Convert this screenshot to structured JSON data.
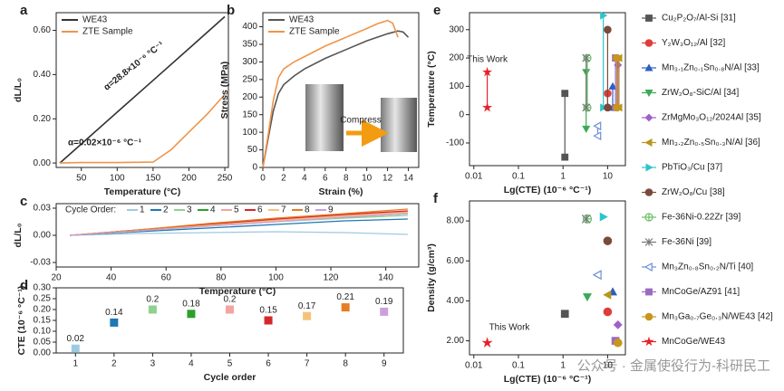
{
  "watermark": "公众号 · 金属使役行为-科研民工",
  "chart_data": [
    {
      "panel": "a",
      "type": "line",
      "xlabel": "Temperature (°C)",
      "ylabel": "dL/L₀",
      "xlim": [
        15,
        255
      ],
      "xticks": [
        50,
        100,
        150,
        200,
        250
      ],
      "ylim": [
        -0.02,
        0.68
      ],
      "yticks": [
        {
          "value": 0,
          "label": "0.00"
        },
        {
          "value": 0.2,
          "label": "0.20"
        },
        {
          "value": 0.4,
          "label": "0.40"
        },
        {
          "value": 0.6,
          "label": "0.60"
        }
      ],
      "legend": "upper left",
      "series": [
        {
          "name": "WE43",
          "color": "#333333",
          "x": [
            20,
            50,
            100,
            150,
            200,
            250
          ],
          "values": [
            0,
            0.086,
            0.23,
            0.374,
            0.518,
            0.662
          ]
        },
        {
          "name": "ZTE Sample",
          "color": "#f0944a",
          "x": [
            20,
            50,
            100,
            150,
            175,
            200,
            225,
            250
          ],
          "values": [
            0,
            0.002,
            0.002,
            0.004,
            0.06,
            0.14,
            0.22,
            0.31
          ]
        }
      ],
      "annotations": [
        "α=28.8×10⁻⁶ °C⁻¹",
        "α=0.02×10⁻⁶ °C⁻¹"
      ]
    },
    {
      "panel": "b",
      "type": "line",
      "xlabel": "Strain (%)",
      "ylabel": "Stress (MPa)",
      "xlim": [
        0,
        15
      ],
      "xticks": [
        0,
        2,
        4,
        6,
        8,
        10,
        12,
        14
      ],
      "ylim": [
        0,
        440
      ],
      "yticks": [
        0,
        50,
        100,
        150,
        200,
        250,
        300,
        350,
        400
      ],
      "legend": "upper left",
      "series": [
        {
          "name": "WE43",
          "color": "#555555",
          "x": [
            0,
            0.5,
            1,
            1.5,
            2,
            3,
            4,
            6,
            8,
            10,
            12,
            13,
            13.5,
            14
          ],
          "values": [
            0,
            80,
            160,
            210,
            235,
            260,
            280,
            310,
            335,
            360,
            380,
            388,
            385,
            370
          ]
        },
        {
          "name": "ZTE Sample",
          "color": "#f0944a",
          "x": [
            0,
            0.5,
            1,
            1.5,
            2,
            2.5,
            3,
            4,
            6,
            8,
            10,
            11,
            12,
            12.5,
            13
          ],
          "values": [
            0,
            90,
            190,
            255,
            280,
            290,
            300,
            315,
            345,
            370,
            395,
            408,
            418,
            410,
            370
          ]
        }
      ],
      "annotations": [
        "Compress"
      ]
    },
    {
      "panel": "c",
      "type": "line",
      "xlabel": "Temperature (°C)",
      "ylabel": "dL/L₀",
      "xlim": [
        20,
        152
      ],
      "xticks": [
        20,
        40,
        60,
        80,
        100,
        120,
        140
      ],
      "ylim": [
        -0.035,
        0.035
      ],
      "yticks": [
        {
          "value": 0.03,
          "label": "0.03"
        },
        {
          "value": 0,
          "label": "0.00"
        },
        {
          "value": -0.03,
          "label": "-0.03"
        }
      ],
      "legend": "top",
      "legend_title": "Cycle Order:",
      "series": [
        {
          "name": "1",
          "color": "#9ecae1",
          "x": [
            25,
            50,
            75,
            100,
            125,
            148
          ],
          "values": [
            0,
            0.002,
            0.003,
            0.004,
            0.003,
            0.001
          ]
        },
        {
          "name": "2",
          "color": "#1f77b4",
          "x": [
            25,
            50,
            75,
            100,
            125,
            148
          ],
          "values": [
            0,
            0.004,
            0.008,
            0.012,
            0.016,
            0.018
          ]
        },
        {
          "name": "3",
          "color": "#8fd18f",
          "x": [
            25,
            50,
            75,
            100,
            125,
            148
          ],
          "values": [
            0,
            0.005,
            0.01,
            0.015,
            0.019,
            0.022
          ]
        },
        {
          "name": "4",
          "color": "#2ca02c",
          "x": [
            25,
            50,
            75,
            100,
            125,
            148
          ],
          "values": [
            0,
            0.005,
            0.011,
            0.016,
            0.02,
            0.024
          ]
        },
        {
          "name": "5",
          "color": "#f4a3a3",
          "x": [
            25,
            50,
            75,
            100,
            125,
            148
          ],
          "values": [
            0,
            0.006,
            0.012,
            0.017,
            0.022,
            0.026
          ]
        },
        {
          "name": "6",
          "color": "#d62728",
          "x": [
            25,
            50,
            75,
            100,
            125,
            148
          ],
          "values": [
            0,
            0.006,
            0.012,
            0.018,
            0.023,
            0.027
          ]
        },
        {
          "name": "7",
          "color": "#f5c27a",
          "x": [
            25,
            50,
            75,
            100,
            125,
            148
          ],
          "values": [
            0,
            0.005,
            0.011,
            0.016,
            0.021,
            0.025
          ]
        },
        {
          "name": "8",
          "color": "#e67e22",
          "x": [
            25,
            50,
            75,
            100,
            125,
            148
          ],
          "values": [
            0,
            0.006,
            0.013,
            0.019,
            0.024,
            0.029
          ]
        },
        {
          "name": "9",
          "color": "#c9a0dc",
          "x": [
            25,
            50,
            75,
            100,
            125,
            148
          ],
          "values": [
            0,
            0.005,
            0.01,
            0.015,
            0.02,
            0.024
          ]
        }
      ]
    },
    {
      "panel": "d",
      "type": "scatter",
      "xlabel": "Cycle order",
      "ylabel": "CTE (10⁻⁶ °C⁻¹)",
      "categories": [
        "1",
        "2",
        "3",
        "4",
        "5",
        "6",
        "7",
        "8",
        "9"
      ],
      "values": [
        0.02,
        0.14,
        0.2,
        0.18,
        0.2,
        0.15,
        0.17,
        0.21,
        0.19
      ],
      "colors": [
        "#9ecae1",
        "#1f77b4",
        "#8fd18f",
        "#2ca02c",
        "#f4a3a3",
        "#d62728",
        "#f5c27a",
        "#e67e22",
        "#c9a0dc"
      ],
      "ylim": [
        0,
        0.3
      ],
      "yticks": [
        {
          "value": 0,
          "label": "0.00"
        },
        {
          "value": 0.05,
          "label": "0.05"
        },
        {
          "value": 0.1,
          "label": "0.10"
        },
        {
          "value": 0.15,
          "label": "0.15"
        },
        {
          "value": 0.2,
          "label": "0.20"
        },
        {
          "value": 0.25,
          "label": "0.25"
        },
        {
          "value": 0.3,
          "label": "0.30"
        }
      ]
    },
    {
      "panel": "e",
      "type": "range",
      "xscale": "log",
      "xlabel": "Lg(CTE) (10⁻⁶ °C⁻¹)",
      "ylabel": "Temperature (°C)",
      "xlim": [
        0.008,
        25
      ],
      "xticks": [
        0.01,
        0.1,
        1,
        10
      ],
      "ylim": [
        -180,
        360
      ],
      "yticks": [
        -100,
        0,
        100,
        200,
        300
      ],
      "legend": "right",
      "annotations": [
        "This Work"
      ],
      "series": [
        {
          "name": "Cu₂P₂O₇/Al-Si [31]",
          "color": "#555555",
          "marker": "square",
          "x": 1.1,
          "values": [
            -150,
            75
          ]
        },
        {
          "name": "Y₂W₃O₁₂/Al [32]",
          "color": "#e03c3c",
          "marker": "circle",
          "x": 10,
          "values": [
            25,
            75
          ]
        },
        {
          "name": "Mn₃.₁Zn₀.₁Sn₀.₈N/Al [33]",
          "color": "#2b5fbf",
          "marker": "triangle",
          "x": 13,
          "values": [
            25,
            100
          ]
        },
        {
          "name": "ZrW₂O₈-SiC/Al [34]",
          "color": "#3aaa55",
          "marker": "tri-down",
          "x": 3.3,
          "values": [
            -50,
            150
          ]
        },
        {
          "name": "ZrMgMo₃O₁₂/2024Al [35]",
          "color": "#a060c8",
          "marker": "diamond",
          "x": 17,
          "values": [
            25,
            175
          ]
        },
        {
          "name": "Mn₃.₂Zn₀.₅Sn₀.₃N/Al [36]",
          "color": "#b8961a",
          "marker": "tri-left",
          "x": 18,
          "values": [
            25,
            200
          ]
        },
        {
          "name": "PbTiO₃/Cu [37]",
          "color": "#2ec4cc",
          "marker": "tri-right",
          "x": 8,
          "values": [
            25,
            350
          ]
        },
        {
          "name": "ZrW₂O₈/Cu [38]",
          "color": "#7a4a3a",
          "marker": "circle",
          "x": 10,
          "values": [
            25,
            300
          ]
        },
        {
          "name": "Fe-36Ni-0.22Zr [39]",
          "color": "#6bbf6b",
          "marker": "circle-open",
          "x": 3.5,
          "values": [
            25,
            200
          ]
        },
        {
          "name": "Fe-36Ni [39]",
          "color": "#777777",
          "marker": "x",
          "x": 3.3,
          "values": [
            25,
            200
          ]
        },
        {
          "name": "Mn₃Zn₀.₈Sn₀.₂N/Ti [40]",
          "color": "#6f8fd8",
          "marker": "tri-left-open",
          "x": 6,
          "values": [
            -75,
            -40
          ]
        },
        {
          "name": "MnCoGe/AZ91 [41]",
          "color": "#9a6ac0",
          "marker": "square",
          "x": 15,
          "values": [
            25,
            200
          ]
        },
        {
          "name": "Mn₃Ga₀.₇Ge₀.₃N/WE43 [42]",
          "color": "#c8961a",
          "marker": "circle",
          "x": 16,
          "values": [
            25,
            200
          ]
        },
        {
          "name": "MnCoGe/WE43",
          "color": "#e8202a",
          "marker": "star",
          "x": 0.02,
          "values": [
            25,
            150
          ]
        }
      ]
    },
    {
      "panel": "f",
      "type": "points",
      "xscale": "log",
      "xlabel": "Lg(CTE) (10⁻⁶ °C⁻¹)",
      "ylabel": "Density (g/cm³)",
      "xlim": [
        0.008,
        25
      ],
      "xticks": [
        0.01,
        0.1,
        1,
        10
      ],
      "ylim": [
        1.3,
        9
      ],
      "yticks": [
        {
          "value": 2,
          "label": "2.00"
        },
        {
          "value": 4,
          "label": "4.00"
        },
        {
          "value": 6,
          "label": "6.00"
        },
        {
          "value": 8,
          "label": "8.00"
        }
      ],
      "annotations": [
        "This Work"
      ],
      "series": [
        {
          "color": "#555555",
          "marker": "square",
          "x": 1.1,
          "y": 3.35
        },
        {
          "color": "#e03c3c",
          "marker": "circle",
          "x": 10,
          "y": 3.45
        },
        {
          "color": "#2b5fbf",
          "marker": "triangle",
          "x": 13,
          "y": 4.45
        },
        {
          "color": "#3aaa55",
          "marker": "tri-down",
          "x": 3.5,
          "y": 4.2
        },
        {
          "color": "#a060c8",
          "marker": "diamond",
          "x": 17,
          "y": 2.8
        },
        {
          "color": "#b8961a",
          "marker": "tri-left",
          "x": 10,
          "y": 4.3
        },
        {
          "color": "#2ec4cc",
          "marker": "tri-right",
          "x": 8,
          "y": 8.2
        },
        {
          "color": "#7a4a3a",
          "marker": "circle",
          "x": 10,
          "y": 7.0
        },
        {
          "color": "#6bbf6b",
          "marker": "circle-open",
          "x": 3.5,
          "y": 8.1
        },
        {
          "color": "#777777",
          "marker": "x",
          "x": 3.3,
          "y": 8.1
        },
        {
          "color": "#6f8fd8",
          "marker": "tri-left-open",
          "x": 6,
          "y": 5.3
        },
        {
          "color": "#9a6ac0",
          "marker": "square",
          "x": 15,
          "y": 2.0
        },
        {
          "color": "#c8961a",
          "marker": "circle",
          "x": 17,
          "y": 1.9
        },
        {
          "color": "#e8202a",
          "marker": "star",
          "x": 0.02,
          "y": 1.9
        }
      ]
    }
  ]
}
